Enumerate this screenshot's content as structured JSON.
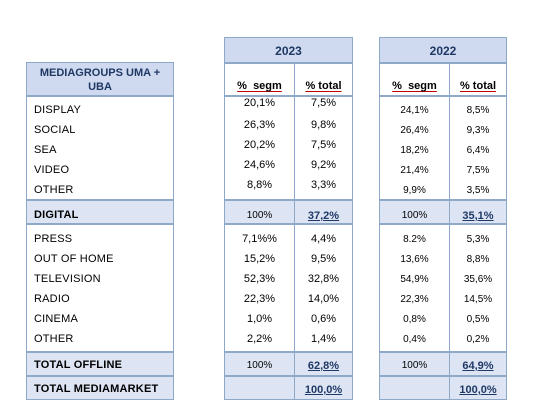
{
  "table": {
    "group_header": "MEDIAGROUPS UMA + UBA",
    "year_2023": "2023",
    "year_2022": "2022",
    "col_segm": "%  segm",
    "col_total": "% total",
    "rows": [
      {
        "label": "DISPLAY",
        "y2023_segm": "20,1%",
        "y2023_total": "7,5%",
        "y2022_segm": "24,1%",
        "y2022_total": "8,5%"
      },
      {
        "label": "SOCIAL",
        "y2023_segm": "26,3%",
        "y2023_total": "9,8%",
        "y2022_segm": "26,4%",
        "y2022_total": "9,3%"
      },
      {
        "label": "SEA",
        "y2023_segm": "20,2%",
        "y2023_total": "7,5%",
        "y2022_segm": "18,2%",
        "y2022_total": "6,4%"
      },
      {
        "label": "VIDEO",
        "y2023_segm": "24,6%",
        "y2023_total": "9,2%",
        "y2022_segm": "21,4%",
        "y2022_total": "7,5%"
      },
      {
        "label": "OTHER",
        "y2023_segm": "8,8%",
        "y2023_total": "3,3%",
        "y2022_segm": "9,9%",
        "y2022_total": "3,5%"
      },
      {
        "label": "DIGITAL",
        "y2023_segm": "100%",
        "y2023_total": "37,2%",
        "y2022_segm": "100%",
        "y2022_total": "35,1%"
      },
      {
        "label": "PRESS",
        "y2023_segm": "7,1%%",
        "y2023_total": "4,4%",
        "y2022_segm": "8.2%",
        "y2022_total": "5,3%"
      },
      {
        "label": "OUT OF HOME",
        "y2023_segm": "15,2%",
        "y2023_total": "9,5%",
        "y2022_segm": "13,6%",
        "y2022_total": "8,8%"
      },
      {
        "label": "TELEVISION",
        "y2023_segm": "52,3%",
        "y2023_total": "32,8%",
        "y2022_segm": "54,9%",
        "y2022_total": "35,6%"
      },
      {
        "label": "RADIO",
        "y2023_segm": "22,3%",
        "y2023_total": "14,0%",
        "y2022_segm": "22,3%",
        "y2022_total": "14,5%"
      },
      {
        "label": "CINEMA",
        "y2023_segm": "1,0%",
        "y2023_total": "0,6%",
        "y2022_segm": "0,8%",
        "y2022_total": "0,5%"
      },
      {
        "label": "OTHER",
        "y2023_segm": "2,2%",
        "y2023_total": "1,4%",
        "y2022_segm": "0,4%",
        "y2022_total": "0,2%"
      },
      {
        "label": "TOTAL OFFLINE",
        "y2023_segm": "100%",
        "y2023_total": "62,8%",
        "y2022_segm": "100%",
        "y2022_total": "64,9%"
      },
      {
        "label": "TOTAL MEDIAMARKET",
        "y2023_segm": "",
        "y2023_total": "100,0%",
        "y2022_segm": "",
        "y2022_total": "100,0%"
      }
    ]
  }
}
